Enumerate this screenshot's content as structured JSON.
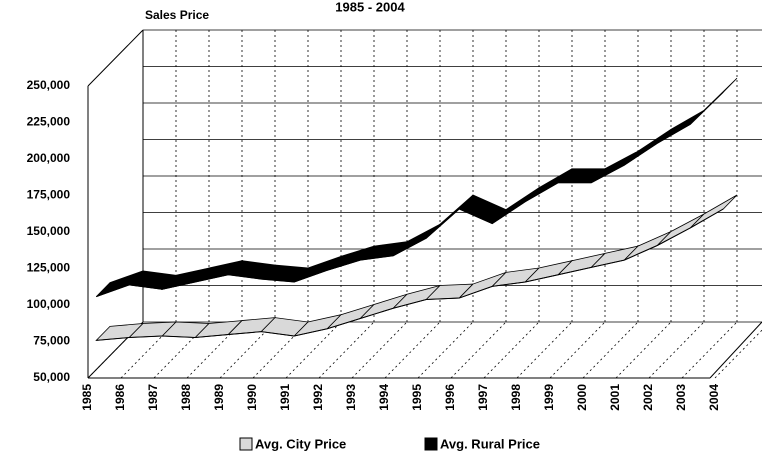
{
  "chart_data": {
    "type": "line3d",
    "title": "1985 - 2004",
    "y_label": "Sales Price",
    "categories": [
      "1985",
      "1986",
      "1987",
      "1988",
      "1989",
      "1990",
      "1991",
      "1992",
      "1993",
      "1994",
      "1995",
      "1996",
      "1997",
      "1998",
      "1999",
      "2000",
      "2001",
      "2002",
      "2003",
      "2004"
    ],
    "series": [
      {
        "name": "Avg. City Price",
        "color": "#d9d9d9",
        "values": [
          70000,
          72000,
          73000,
          72000,
          74000,
          76000,
          73000,
          78000,
          85000,
          92000,
          98000,
          99000,
          107000,
          110000,
          115000,
          120000,
          125000,
          135000,
          147000,
          160000
        ]
      },
      {
        "name": "Avg. Rural Price",
        "color": "#000000",
        "values": [
          100000,
          108000,
          105000,
          110000,
          115000,
          112000,
          110000,
          118000,
          125000,
          128000,
          140000,
          160000,
          150000,
          165000,
          178000,
          178000,
          190000,
          205000,
          218000,
          240000
        ]
      }
    ],
    "ylim": [
      50000,
      250000
    ],
    "yticks": [
      {
        "value": 50000,
        "label": "50,000"
      },
      {
        "value": 75000,
        "label": "75,000"
      },
      {
        "value": 100000,
        "label": "100,000"
      },
      {
        "value": 125000,
        "label": "125,000"
      },
      {
        "value": 150000,
        "label": "150,000"
      },
      {
        "value": 175000,
        "label": "175,000"
      },
      {
        "value": 200000,
        "label": "200,000"
      },
      {
        "value": 225000,
        "label": "225,000"
      },
      {
        "value": 250000,
        "label": "250,000"
      }
    ],
    "grid": true
  }
}
